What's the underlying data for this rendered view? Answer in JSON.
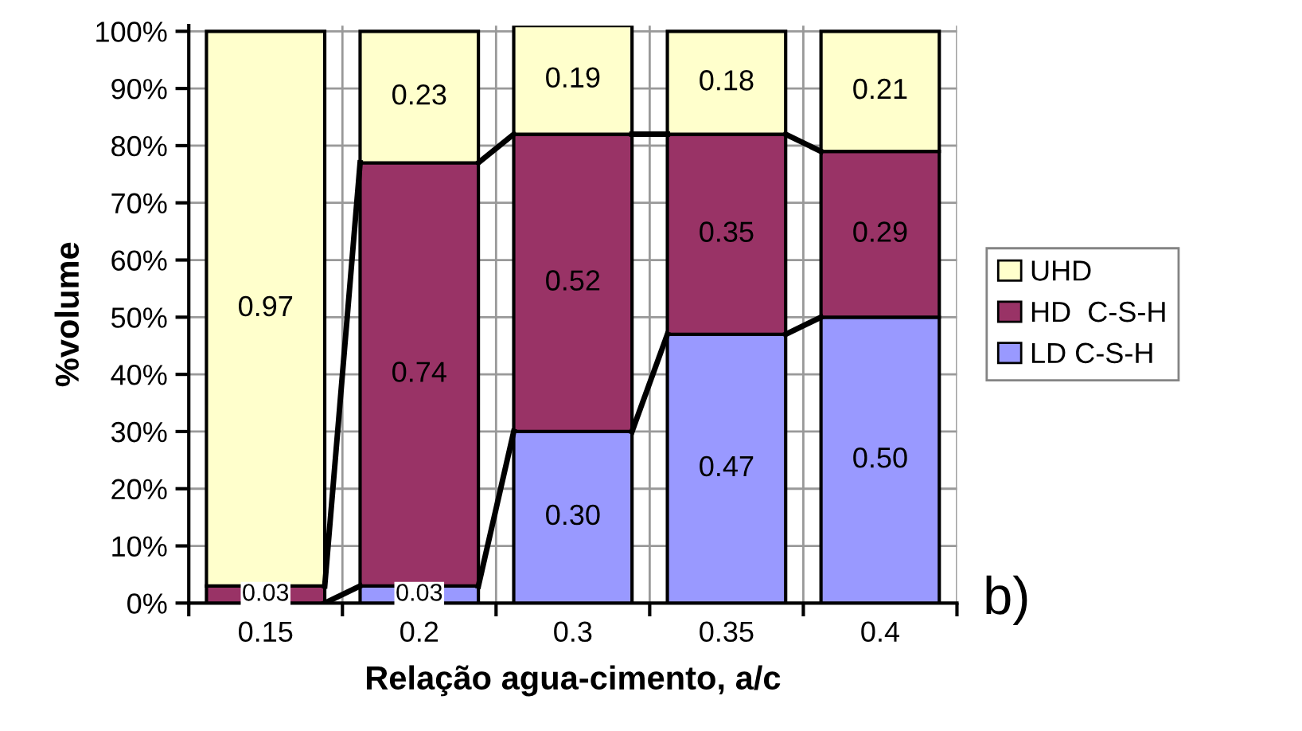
{
  "chart_data": {
    "type": "bar",
    "stacked": true,
    "xlabel": "Relação agua-cimento, a/c",
    "ylabel": "%volume",
    "categories": [
      "0.15",
      "0.2",
      "0.3",
      "0.35",
      "0.4"
    ],
    "series": [
      {
        "name": "LD C-S-H",
        "color": "#9999ff",
        "values": [
          0,
          0.03,
          0.3,
          0.47,
          0.5
        ],
        "value_labels": [
          null,
          "0.03",
          "0.30",
          "0.47",
          "0.50"
        ]
      },
      {
        "name": "HD  C-S-H",
        "color": "#993366",
        "values": [
          0.03,
          0.74,
          0.52,
          0.35,
          0.29
        ],
        "value_labels": [
          "0.03",
          "0.74",
          "0.52",
          "0.35",
          "0.29"
        ]
      },
      {
        "name": "UHD",
        "color": "#ffffcc",
        "values": [
          0.97,
          0.23,
          0.19,
          0.18,
          0.21
        ],
        "value_labels": [
          "0.97",
          "0.23",
          "0.19",
          "0.18",
          "0.21"
        ]
      }
    ],
    "ylim": [
      0,
      1.01
    ],
    "yticks": [
      {
        "value": 0,
        "label": "0%"
      },
      {
        "value": 0.1,
        "label": "10%"
      },
      {
        "value": 0.2,
        "label": "20%"
      },
      {
        "value": 0.3,
        "label": "30%"
      },
      {
        "value": 0.4,
        "label": "40%"
      },
      {
        "value": 0.5,
        "label": "50%"
      },
      {
        "value": 0.6,
        "label": "60%"
      },
      {
        "value": 0.7,
        "label": "70%"
      },
      {
        "value": 0.8,
        "label": "80%"
      },
      {
        "value": 0.9,
        "label": "90%"
      },
      {
        "value": 1.0,
        "label": "100%"
      }
    ],
    "grid": true,
    "legend": "right",
    "annotations": [
      "b)"
    ]
  }
}
